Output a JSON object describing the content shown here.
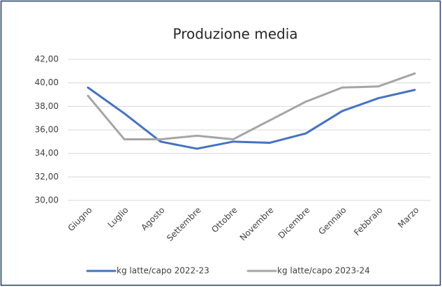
{
  "chart_data": {
    "type": "line",
    "title": "Produzione media",
    "categories": [
      "Giugno",
      "Luglio",
      "Agosto",
      "Settembre",
      "Ottobre",
      "Novembre",
      "Dicembre",
      "Gennaio",
      "Febbraio",
      "Marzo"
    ],
    "series": [
      {
        "name": "kg latte/capo 2022-23",
        "color": "#4472c4",
        "values": [
          39.6,
          37.4,
          35.0,
          34.4,
          35.0,
          34.9,
          35.7,
          37.6,
          38.7,
          39.4
        ]
      },
      {
        "name": "kg latte/capo 2023-24",
        "color": "#a5a5a5",
        "values": [
          38.9,
          35.2,
          35.2,
          35.5,
          35.2,
          36.8,
          38.4,
          39.6,
          39.7,
          40.8
        ]
      }
    ],
    "ylim": [
      30,
      42
    ],
    "yticks": [
      {
        "value": 30,
        "label": "30,00"
      },
      {
        "value": 32,
        "label": "32,00"
      },
      {
        "value": 34,
        "label": "34,00"
      },
      {
        "value": 36,
        "label": "36,00"
      },
      {
        "value": 38,
        "label": "38,00"
      },
      {
        "value": 40,
        "label": "40,00"
      },
      {
        "value": 42,
        "label": "42,00"
      }
    ],
    "grid": true,
    "legend": "bottom"
  }
}
